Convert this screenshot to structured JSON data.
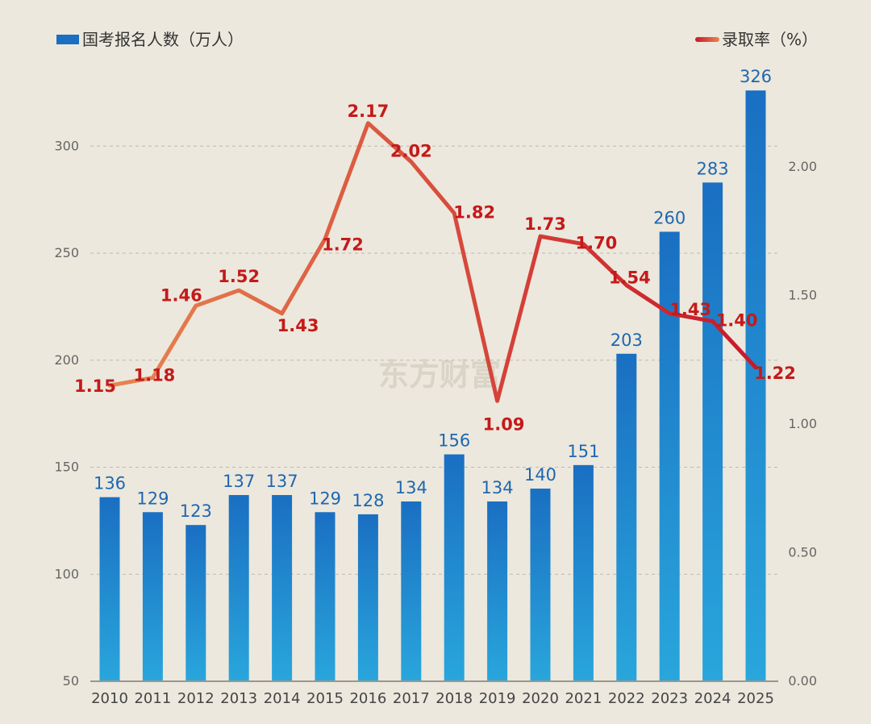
{
  "chart_data": {
    "type": "bar",
    "categories": [
      "2010",
      "2011",
      "2012",
      "2013",
      "2014",
      "2015",
      "2016",
      "2017",
      "2018",
      "2019",
      "2020",
      "2021",
      "2022",
      "2023",
      "2024",
      "2025"
    ],
    "series": [
      {
        "name": "国考报名人数（万人）",
        "type": "bar",
        "axis": "left",
        "values": [
          136,
          129,
          123,
          137,
          137,
          129,
          128,
          134,
          156,
          134,
          140,
          151,
          203,
          260,
          283,
          326
        ],
        "labels": [
          "136",
          "129",
          "123",
          "137",
          "137",
          "129",
          "128",
          "134",
          "156",
          "134",
          "140",
          "151",
          "203",
          "260",
          "283",
          "326"
        ]
      },
      {
        "name": "录取率（%）",
        "type": "line",
        "axis": "right",
        "values": [
          1.15,
          1.18,
          1.46,
          1.52,
          1.43,
          1.72,
          2.17,
          2.02,
          1.82,
          1.09,
          1.73,
          1.7,
          1.54,
          1.43,
          1.4,
          1.22
        ],
        "labels": [
          "1.15",
          "1.18",
          "1.46",
          "1.52",
          "1.43",
          "1.72",
          "2.17",
          "2.02",
          "1.82",
          "1.09",
          "1.73",
          "1.70",
          "1.54",
          "1.43",
          "1.40",
          "1.22"
        ]
      }
    ],
    "left_axis": {
      "ylim": [
        50,
        350
      ],
      "ticks": [
        "50",
        "100",
        "150",
        "200",
        "250",
        "300"
      ]
    },
    "right_axis": {
      "ylim": [
        0,
        2.3
      ],
      "ticks": [
        "0.00",
        "0.50",
        "1.00",
        "1.50",
        "2.00"
      ]
    },
    "grid": true,
    "legend_position": "top",
    "colors": {
      "bar_top": "#1a6fc2",
      "bar_bottom": "#29a6dc",
      "line_start": "#e88550",
      "line_end": "#c8182a",
      "bar_label": "#1f67b0",
      "rate_label": "#c41a1a"
    }
  },
  "watermark": "东方财富"
}
